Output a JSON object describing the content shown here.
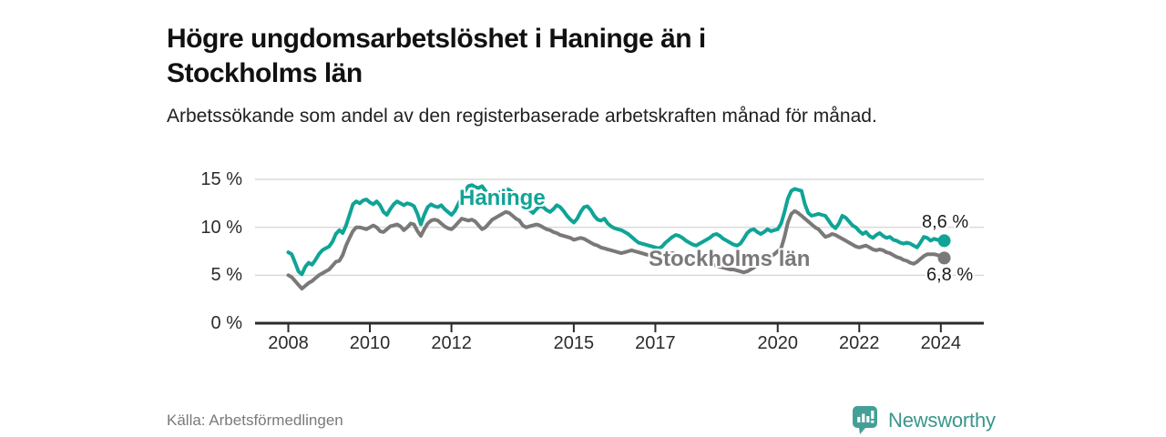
{
  "header": {
    "title": "Högre ungdomsarbetslöshet i Haninge än i Stockholms län",
    "subtitle": "Arbetssökande som andel av den registerbaserade arbetskraften månad för månad."
  },
  "chart_data": {
    "type": "line",
    "title": "Högre ungdomsarbetslöshet i Haninge än i Stockholms län",
    "subtitle": "Arbetssökande som andel av den registerbaserade arbetskraften månad för månad.",
    "x_start": 2008.0,
    "x_step_months": 1,
    "x_ticks": [
      2008,
      2010,
      2012,
      2015,
      2017,
      2020,
      2022,
      2024
    ],
    "y_ticks": [
      0,
      5,
      10,
      15
    ],
    "y_tick_suffix": " %",
    "ylim": [
      0,
      15
    ],
    "grid": "horizontal",
    "legend_position": "inline-labels",
    "axis_color": "#2b2b2b",
    "grid_color": "#dadada",
    "series": [
      {
        "name": "Haninge",
        "color": "#0fa496",
        "values": [
          7.4,
          7.2,
          6.3,
          5.4,
          5.1,
          5.9,
          6.3,
          6.1,
          6.6,
          7.2,
          7.6,
          7.8,
          8.0,
          8.5,
          9.3,
          9.7,
          9.4,
          10.2,
          11.3,
          12.4,
          12.7,
          12.5,
          12.8,
          12.9,
          12.6,
          12.4,
          12.7,
          12.3,
          11.6,
          11.3,
          11.9,
          12.4,
          12.7,
          12.5,
          12.3,
          12.5,
          12.4,
          12.2,
          11.4,
          10.3,
          11.3,
          12.1,
          12.4,
          12.2,
          12.1,
          12.3,
          11.9,
          11.6,
          11.3,
          11.7,
          12.4,
          13.1,
          13.8,
          14.3,
          14.4,
          14.2,
          14.1,
          14.3,
          13.8,
          13.3,
          13.2,
          13.4,
          13.6,
          13.8,
          14.0,
          13.9,
          13.6,
          13.1,
          12.7,
          12.4,
          12.2,
          11.8,
          11.5,
          11.9,
          12.2,
          12.1,
          11.8,
          11.6,
          11.9,
          12.3,
          12.1,
          11.7,
          11.2,
          10.8,
          10.5,
          10.9,
          11.6,
          12.1,
          12.2,
          11.8,
          11.2,
          10.8,
          10.7,
          10.9,
          10.4,
          10.1,
          9.9,
          9.8,
          9.7,
          9.5,
          9.3,
          9.0,
          8.7,
          8.4,
          8.3,
          8.2,
          8.1,
          8.0,
          7.9,
          7.8,
          8.0,
          8.4,
          8.7,
          9.0,
          9.2,
          9.1,
          8.9,
          8.6,
          8.4,
          8.2,
          8.1,
          8.3,
          8.5,
          8.7,
          8.9,
          9.2,
          9.3,
          9.1,
          8.8,
          8.6,
          8.4,
          8.2,
          8.1,
          8.3,
          8.8,
          9.4,
          9.7,
          9.8,
          9.5,
          9.3,
          9.5,
          9.8,
          9.6,
          9.7,
          9.8,
          10.4,
          11.6,
          13.0,
          13.8,
          14.0,
          13.9,
          13.8,
          12.4,
          11.5,
          11.2,
          11.3,
          11.4,
          11.3,
          11.2,
          10.7,
          10.2,
          9.9,
          10.4,
          11.2,
          11.0,
          10.6,
          10.2,
          10.0,
          9.6,
          9.3,
          9.5,
          9.1,
          8.9,
          9.2,
          9.4,
          9.1,
          8.9,
          9.0,
          8.7,
          8.6,
          8.4,
          8.3,
          8.4,
          8.3,
          8.1,
          7.9,
          8.4,
          9.0,
          8.9,
          8.6,
          8.8,
          8.7,
          8.7,
          8.6
        ]
      },
      {
        "name": "Stockholms län",
        "color": "#7b7878",
        "values": [
          5.0,
          4.8,
          4.4,
          4.0,
          3.6,
          3.9,
          4.2,
          4.4,
          4.7,
          5.0,
          5.2,
          5.4,
          5.6,
          6.0,
          6.4,
          6.5,
          7.1,
          8.1,
          8.9,
          9.6,
          10.0,
          10.0,
          9.9,
          9.8,
          10.0,
          10.2,
          10.0,
          9.6,
          9.5,
          9.8,
          10.1,
          10.2,
          10.3,
          10.1,
          9.7,
          10.0,
          10.4,
          10.3,
          9.6,
          9.1,
          9.8,
          10.4,
          10.7,
          10.8,
          10.7,
          10.4,
          10.1,
          9.9,
          9.8,
          10.1,
          10.5,
          10.9,
          10.8,
          10.7,
          10.8,
          10.6,
          10.2,
          9.8,
          10.0,
          10.4,
          10.8,
          11.0,
          11.2,
          11.4,
          11.6,
          11.5,
          11.2,
          10.9,
          10.7,
          10.2,
          10.0,
          10.1,
          10.2,
          10.3,
          10.2,
          10.0,
          9.8,
          9.7,
          9.5,
          9.4,
          9.2,
          9.1,
          9.0,
          8.9,
          8.7,
          8.8,
          8.9,
          8.8,
          8.6,
          8.4,
          8.2,
          8.1,
          7.9,
          7.8,
          7.7,
          7.6,
          7.5,
          7.4,
          7.3,
          7.4,
          7.5,
          7.6,
          7.5,
          7.4,
          7.3,
          7.2,
          7.1,
          7.0,
          6.9,
          6.9,
          7.0,
          7.1,
          7.2,
          7.3,
          7.2,
          7.1,
          7.0,
          6.9,
          6.8,
          6.7,
          6.6,
          6.5,
          6.4,
          6.3,
          6.2,
          6.1,
          6.0,
          5.9,
          5.8,
          5.7,
          5.6,
          5.6,
          5.5,
          5.4,
          5.3,
          5.4,
          5.6,
          5.8,
          6.1,
          6.4,
          6.6,
          6.8,
          7.0,
          7.2,
          7.5,
          7.8,
          9.0,
          10.5,
          11.4,
          11.7,
          11.5,
          11.2,
          10.9,
          10.6,
          10.3,
          10.0,
          9.8,
          9.4,
          9.0,
          9.1,
          9.3,
          9.2,
          9.0,
          8.8,
          8.6,
          8.4,
          8.2,
          8.0,
          7.9,
          8.0,
          8.1,
          7.9,
          7.7,
          7.6,
          7.7,
          7.6,
          7.4,
          7.3,
          7.1,
          6.9,
          6.8,
          6.6,
          6.5,
          6.3,
          6.2,
          6.4,
          6.7,
          7.0,
          7.2,
          7.2,
          7.2,
          7.1,
          7.0,
          6.8
        ]
      }
    ],
    "end_labels": {
      "haninge": "8,6 %",
      "stockholms_lan": "6,8 %"
    }
  },
  "footer": {
    "source": "Källa: Arbetsförmedlingen",
    "brand": "Newsworthy",
    "brand_color": "#39968c",
    "logo_icon": "bar-chart-speech-bubble"
  }
}
